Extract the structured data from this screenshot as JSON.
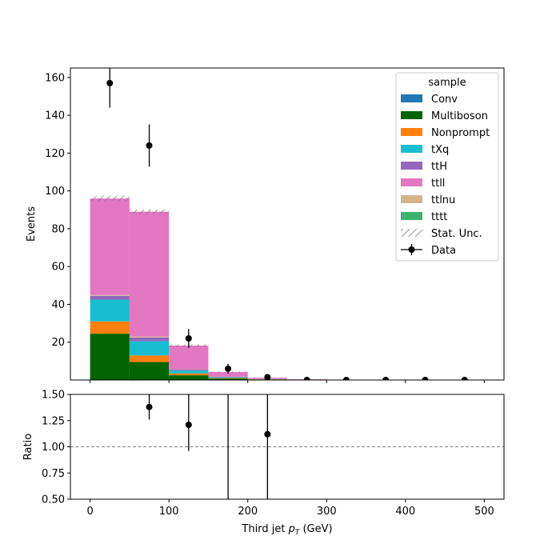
{
  "chart_data": {
    "type": "bar",
    "stacked": true,
    "bin_edges": [
      0,
      50,
      100,
      150,
      200,
      250,
      300,
      350,
      400,
      450,
      500
    ],
    "xlim": [
      -25,
      525
    ],
    "xlabel": "Third jet  p_T (GeV)",
    "xlabel_main": "Third jet  ",
    "xlabel_p": "p",
    "xlabel_sub": "T",
    "xlabel_unit": " (GeV)",
    "xticks": [
      0,
      100,
      200,
      300,
      400,
      500
    ],
    "main": {
      "ylabel": "Events",
      "ylim": [
        0,
        165
      ],
      "yticks": [
        20,
        40,
        60,
        80,
        100,
        120,
        140,
        160
      ]
    },
    "ratio": {
      "ylabel": "Ratio",
      "ylim": [
        0.5,
        1.5
      ],
      "yticks": [
        0.5,
        0.75,
        1.0,
        1.25,
        1.5
      ],
      "ytick_labels": [
        "0.50",
        "0.75",
        "1.00",
        "1.25",
        "1.50"
      ],
      "reference_line": 1.0,
      "points": [
        {
          "x": 75,
          "y": 1.38,
          "err_low": 0.12,
          "err_high": 0.12
        },
        {
          "x": 125,
          "y": 1.21,
          "err_low": 0.25,
          "err_high": 0.35
        },
        {
          "x": 175,
          "y": null,
          "err_low": 0.52,
          "err_high": 0.6
        },
        {
          "x": 225,
          "y": 1.12,
          "err_low": 0.7,
          "err_high": 0.5
        }
      ]
    },
    "legend": {
      "title": "sample",
      "placement": "upper right"
    },
    "series": [
      {
        "name": "tttt",
        "color": "#3cb371",
        "values": [
          0,
          0,
          0,
          0,
          0,
          0,
          0,
          0,
          0,
          0
        ]
      },
      {
        "name": "Multiboson",
        "color": "#006400",
        "values": [
          24.5,
          9.5,
          2.5,
          0.8,
          0.3,
          0,
          0,
          0,
          0,
          0
        ]
      },
      {
        "name": "Conv",
        "color": "#1f77b4",
        "values": [
          0,
          0,
          0,
          0,
          0,
          0,
          0,
          0,
          0,
          0
        ]
      },
      {
        "name": "Nonprompt",
        "color": "#ff7f0e",
        "values": [
          6.5,
          3.5,
          1.0,
          0.3,
          0.1,
          0,
          0,
          0,
          0,
          0
        ]
      },
      {
        "name": "tXq",
        "color": "#17becf",
        "values": [
          11.5,
          7.5,
          1.5,
          0.4,
          0.1,
          0.05,
          0,
          0,
          0,
          0
        ]
      },
      {
        "name": "ttH",
        "color": "#9467bd",
        "values": [
          2.0,
          2.0,
          0.5,
          0.2,
          0.1,
          0.05,
          0,
          0,
          0,
          0
        ]
      },
      {
        "name": "ttlnu",
        "color": "#d2b48c",
        "values": [
          0.5,
          0.5,
          0.2,
          0.1,
          0.05,
          0,
          0,
          0,
          0,
          0
        ]
      },
      {
        "name": "ttll",
        "color": "#e377c2",
        "values": [
          51.0,
          66.0,
          12.5,
          2.4,
          0.55,
          0.25,
          0.15,
          0.05,
          0,
          0
        ]
      }
    ],
    "legend_order": [
      "Conv",
      "Multiboson",
      "Nonprompt",
      "tXq",
      "ttH",
      "ttll",
      "ttlnu",
      "tttt"
    ],
    "stat_unc": {
      "name": "Stat. Unc.",
      "half_width": [
        1.5,
        1.2,
        0.6,
        0.3,
        0.15,
        0.08,
        0.05,
        0.02,
        0,
        0
      ]
    },
    "data": {
      "name": "Data",
      "color": "#000000",
      "points": [
        {
          "x": 25,
          "y": 157,
          "err": 13
        },
        {
          "x": 75,
          "y": 124,
          "err": 11.2
        },
        {
          "x": 125,
          "y": 22,
          "err": 5
        },
        {
          "x": 175,
          "y": 6,
          "err": 2.6
        },
        {
          "x": 225,
          "y": 1.5,
          "err": 1.3
        },
        {
          "x": 275,
          "y": 0
        },
        {
          "x": 325,
          "y": 0
        },
        {
          "x": 375,
          "y": 0
        },
        {
          "x": 425,
          "y": 0
        },
        {
          "x": 475,
          "y": 0
        }
      ]
    }
  }
}
